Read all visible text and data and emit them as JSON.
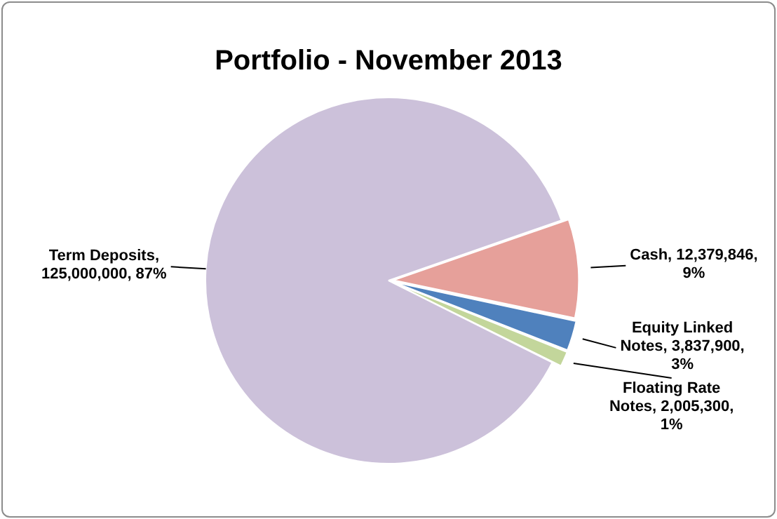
{
  "chart_data": {
    "type": "pie",
    "title": "Portfolio - November 2013",
    "categories": [
      "Term Deposits",
      "Cash",
      "Equity Linked Notes",
      "Floating Rate Notes"
    ],
    "values": [
      125000000,
      12379846,
      3837900,
      2005300
    ],
    "value_labels": [
      ", 125,000,000, 87%",
      ", 12,379,846, 9%",
      ", 3,837,900, 3%",
      ", 2,005,300, 1%"
    ],
    "colors": [
      "#ccc1da",
      "#e6a09a",
      "#4f81bd",
      "#c3d69b"
    ]
  }
}
